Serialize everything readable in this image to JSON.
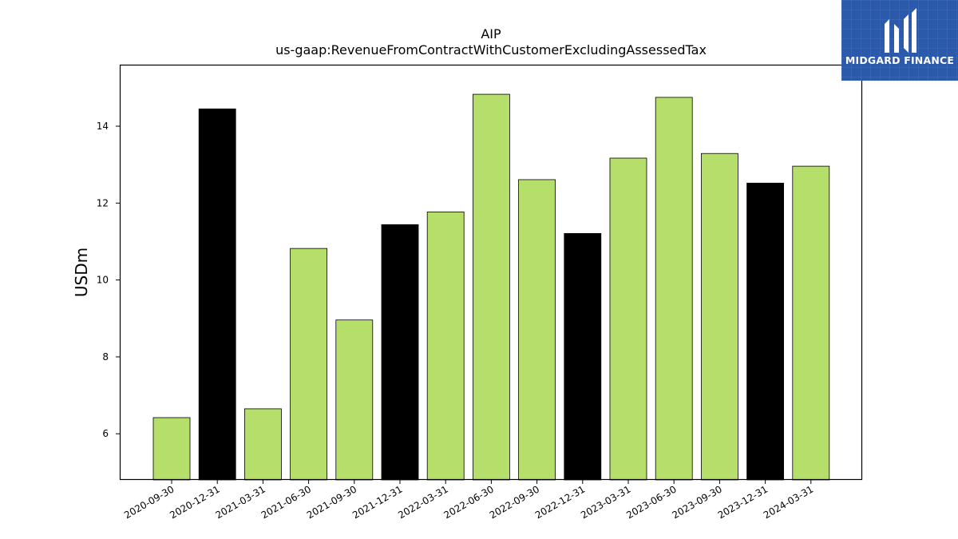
{
  "chart_data": {
    "type": "bar",
    "title": "AIP",
    "subtitle": "us-gaap:RevenueFromContractWithCustomerExcludingAssessedTax",
    "xlabel": "",
    "ylabel": "USDm",
    "ylim": [
      4.8,
      15.6
    ],
    "yticks": [
      6,
      8,
      10,
      12,
      14
    ],
    "grid": false,
    "categories": [
      "2020-09-30",
      "2020-12-31",
      "2021-03-31",
      "2021-06-30",
      "2021-09-30",
      "2021-12-31",
      "2022-03-31",
      "2022-06-30",
      "2022-09-30",
      "2022-12-31",
      "2023-03-31",
      "2023-06-30",
      "2023-09-30",
      "2023-12-31",
      "2024-03-31"
    ],
    "values": [
      6.42,
      14.45,
      6.65,
      10.82,
      8.96,
      11.44,
      11.77,
      14.83,
      12.61,
      11.21,
      13.17,
      14.75,
      13.29,
      12.52,
      12.96
    ],
    "bar_colors": [
      "#b5df6a",
      "#000000",
      "#b5df6a",
      "#b5df6a",
      "#b5df6a",
      "#000000",
      "#b5df6a",
      "#b5df6a",
      "#b5df6a",
      "#000000",
      "#b5df6a",
      "#b5df6a",
      "#b5df6a",
      "#000000",
      "#b5df6a"
    ]
  },
  "logo": {
    "text": "MIDGARD FINANCE",
    "background": "#2b5aad"
  }
}
